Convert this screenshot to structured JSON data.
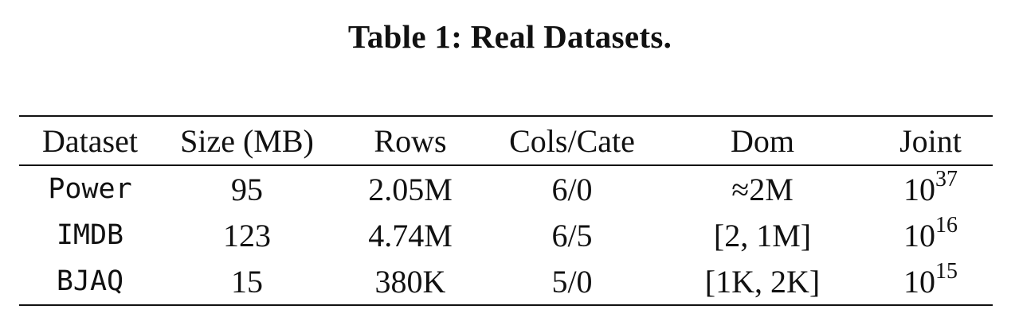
{
  "caption": "Table 1: Real Datasets.",
  "table": {
    "columns": [
      "Dataset",
      "Size (MB)",
      "Rows",
      "Cols/Cate",
      "Dom",
      "Joint"
    ],
    "rows": [
      {
        "dataset": "Power",
        "size": "95",
        "rows": "2.05M",
        "cols_cate": "6/0",
        "dom": "≈2M",
        "joint_base": "10",
        "joint_exp": "37"
      },
      {
        "dataset": "IMDB",
        "size": "123",
        "rows": "4.74M",
        "cols_cate": "6/5",
        "dom": "[2, 1M]",
        "joint_base": "10",
        "joint_exp": "16"
      },
      {
        "dataset": "BJAQ",
        "size": "15",
        "rows": "380K",
        "cols_cate": "5/0",
        "dom": "[1K, 2K]",
        "joint_base": "10",
        "joint_exp": "15"
      }
    ]
  }
}
